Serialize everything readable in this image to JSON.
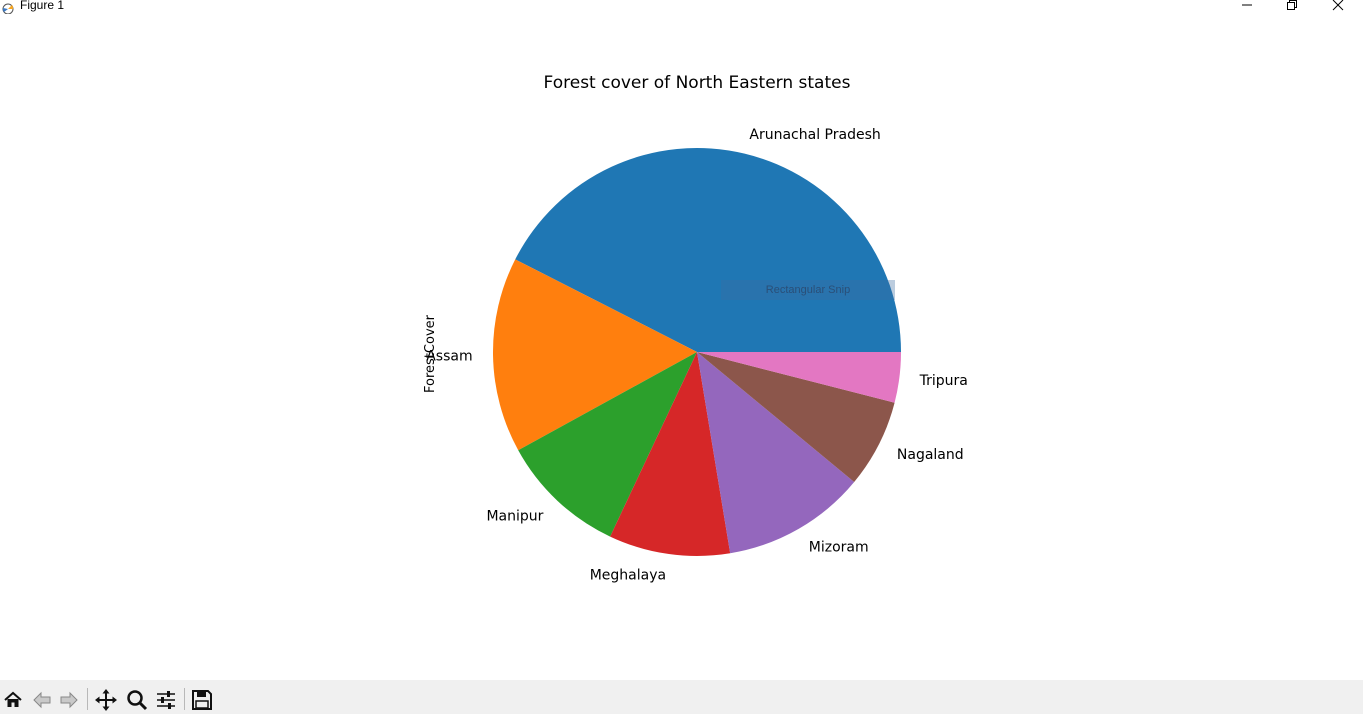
{
  "window": {
    "title": "Figure 1",
    "controls": [
      "minimize",
      "restore",
      "close"
    ]
  },
  "chart_data": {
    "type": "pie",
    "title": "Forest cover of North Eastern states",
    "ylabel": "ForestCover",
    "categories": [
      "Arunachal Pradesh",
      "Assam",
      "Manipur",
      "Meghalaya",
      "Mizoram",
      "Nagaland",
      "Tripura"
    ],
    "values": [
      42.5,
      15.5,
      10.0,
      9.6,
      11.4,
      7.0,
      4.0
    ],
    "colors": [
      "#1f77b4",
      "#ff7f0e",
      "#2ca02c",
      "#d62728",
      "#9467bd",
      "#8c564b",
      "#e377c2"
    ],
    "start_angle_deg": 0,
    "direction": "counterclockwise",
    "legend": "none"
  },
  "overlay": {
    "label": "Rectangular Snip"
  },
  "toolbar": {
    "items": [
      {
        "icon": "home-icon",
        "name": "home-button"
      },
      {
        "icon": "back-arrow-icon",
        "name": "back-button"
      },
      {
        "icon": "forward-arrow-icon",
        "name": "forward-button"
      },
      {
        "icon": "pan-icon",
        "name": "pan-button"
      },
      {
        "icon": "zoom-icon",
        "name": "zoom-button"
      },
      {
        "icon": "sliders-icon",
        "name": "subplots-button"
      },
      {
        "icon": "save-icon",
        "name": "save-button"
      }
    ]
  }
}
